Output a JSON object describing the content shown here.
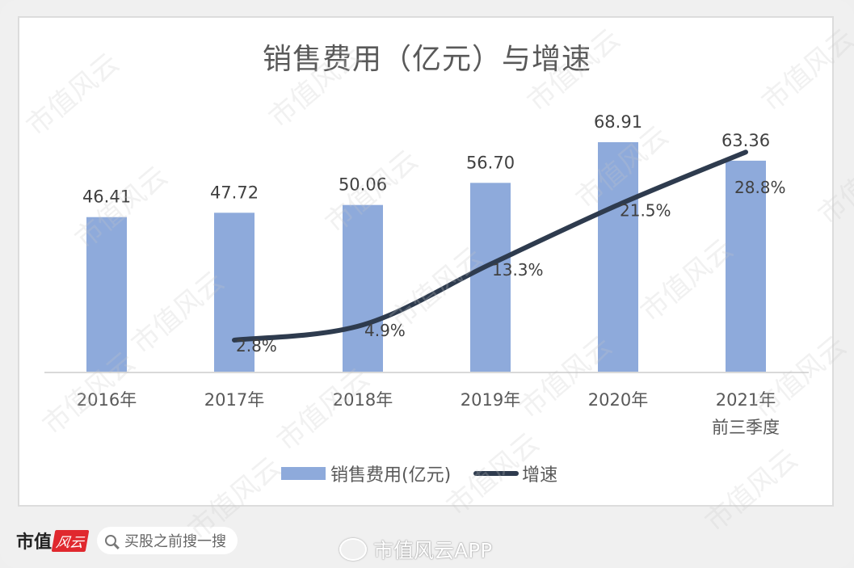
{
  "chart_data": {
    "type": "bar",
    "title": "销售费用（亿元）与增速",
    "categories": [
      "2016年",
      "2017年",
      "2018年",
      "2019年",
      "2020年",
      "2021年 前三季度"
    ],
    "series": [
      {
        "name": "销售费用(亿元)",
        "type": "bar",
        "color": "#8eaadb",
        "values": [
          46.41,
          47.72,
          50.06,
          56.7,
          68.91,
          63.36
        ],
        "labels": [
          "46.41",
          "47.72",
          "50.06",
          "56.70",
          "68.91",
          "63.36"
        ]
      },
      {
        "name": "增速",
        "type": "line",
        "color": "#2e3b4e",
        "values": [
          null,
          2.8,
          4.9,
          13.3,
          21.5,
          28.8
        ],
        "labels": [
          "",
          "2.8%",
          "4.9%",
          "13.3%",
          "21.5%",
          "28.8%"
        ]
      }
    ],
    "xlabel": "",
    "ylabel": "",
    "grid": false,
    "legend_position": "bottom"
  },
  "axis": {
    "categories_line1": [
      "2016年",
      "2017年",
      "2018年",
      "2019年",
      "2020年",
      "2021年"
    ],
    "categories_line2": [
      "",
      "",
      "",
      "",
      "",
      "前三季度"
    ]
  },
  "legend": {
    "bar_label": "销售费用(亿元)",
    "line_label": "增速"
  },
  "footer": {
    "brand": "市值",
    "brand_badge": "风云",
    "search_placeholder": "买股之前搜一搜",
    "weibo_text": "市值风云APP"
  },
  "watermark": "市值风云",
  "colors": {
    "bar": "#8eaadb",
    "line": "#2e3b4e",
    "brand_red": "#e0282e"
  }
}
